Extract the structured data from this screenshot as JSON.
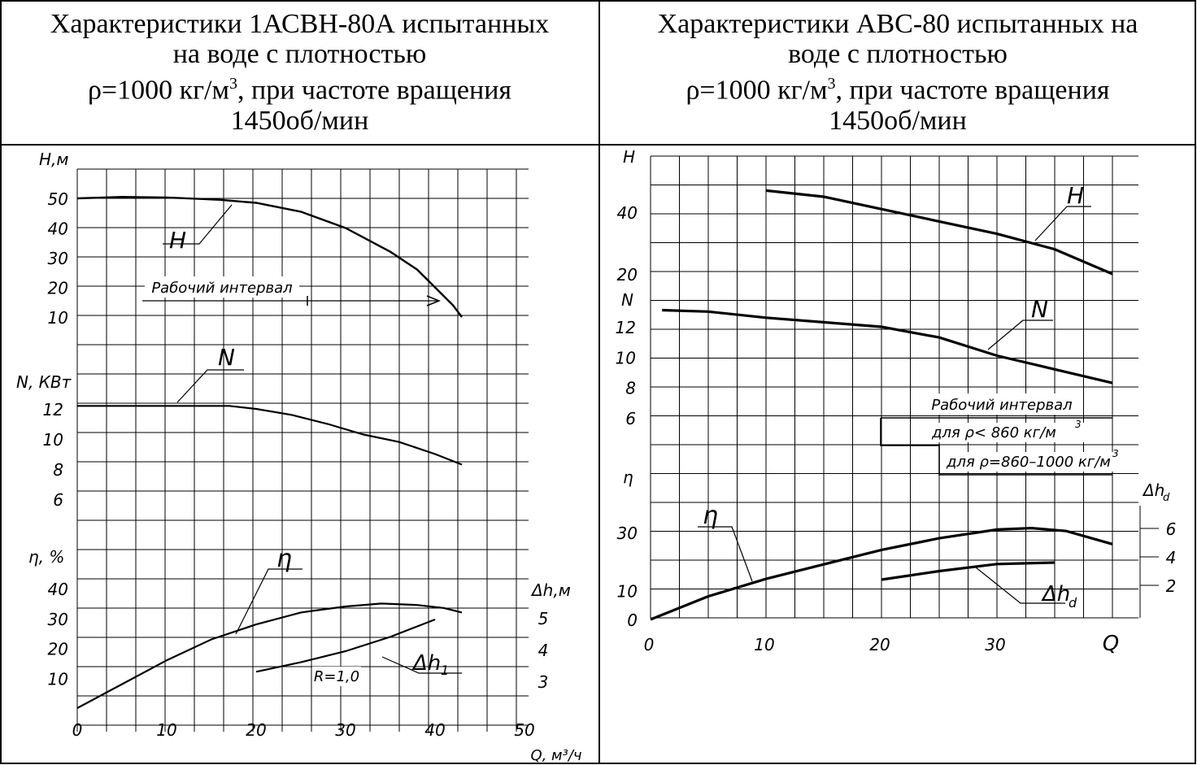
{
  "table": {
    "left_header": {
      "line1": "Характеристики 1АСВН-80А испытанных",
      "line2": "на воде с плотностью",
      "line3_pre": "ρ=1000 кг/м",
      "line3_sup": "3",
      "line3_post": ", при частоте вращения",
      "line4": "1450об/мин"
    },
    "right_header": {
      "line1": "Характеристики АВС-80 испытанных на",
      "line2": "воде с плотностью",
      "line3_pre": "ρ=1000 кг/м",
      "line3_sup": "3",
      "line3_post": ", при частоте вращения",
      "line4": "1450об/мин"
    }
  },
  "chart_data": [
    {
      "type": "line",
      "x_label": "Q, м³/ч",
      "x_ticks": [
        0,
        10,
        20,
        30,
        40,
        50
      ],
      "xlim": [
        0,
        52
      ],
      "grid": true,
      "panels": [
        {
          "axis_label": "Н,м",
          "ticks": [
            10,
            20,
            30,
            40,
            50
          ],
          "range": [
            0,
            55
          ]
        },
        {
          "axis_label": "N, КВт",
          "ticks": [
            6,
            8,
            10,
            12
          ],
          "range": [
            5,
            13.5
          ]
        },
        {
          "axis_label": "η, %",
          "ticks": [
            10,
            20,
            30,
            40
          ],
          "range": [
            0,
            50
          ]
        },
        {
          "axis_label": "Δh,м",
          "ticks": [
            3,
            4,
            5
          ],
          "range": [
            2,
            6
          ]
        }
      ],
      "series": [
        {
          "name": "H",
          "x": [
            0,
            5,
            10,
            16,
            20,
            25,
            30,
            35,
            38,
            40,
            42,
            43
          ],
          "y": [
            50,
            50.5,
            50.3,
            49.5,
            48.5,
            45.5,
            40,
            32,
            26,
            20,
            14,
            10
          ]
        },
        {
          "name": "N",
          "x": [
            0,
            5,
            10,
            15,
            17,
            20,
            24,
            28,
            32,
            36,
            40,
            43
          ],
          "y": [
            12.2,
            12.2,
            12.2,
            12.2,
            12.2,
            12.0,
            11.6,
            11.0,
            10.3,
            9.8,
            9.0,
            8.3
          ]
        },
        {
          "name": "η",
          "x": [
            0,
            5,
            10,
            15,
            20,
            25,
            30,
            34,
            38,
            41,
            43
          ],
          "y": [
            0,
            8,
            16,
            23,
            28,
            32,
            34,
            35,
            34.5,
            33.5,
            32
          ]
        },
        {
          "name": "Δh1",
          "x": [
            20,
            25,
            30,
            35,
            40
          ],
          "y": [
            3.3,
            3.6,
            3.95,
            4.4,
            4.95
          ]
        }
      ],
      "annotations": {
        "working_interval": "Рабочий интервал",
        "r_label": "R=1,0"
      }
    },
    {
      "type": "line",
      "x_label": "Q",
      "x_ticks": [
        0,
        10,
        20,
        30
      ],
      "xlim": [
        0,
        40
      ],
      "grid": true,
      "panels": [
        {
          "axis_label": "H",
          "ticks": [
            20,
            40
          ],
          "range": [
            10,
            50
          ]
        },
        {
          "axis_label": "N",
          "ticks": [
            6,
            8,
            10,
            12
          ],
          "range": [
            5,
            14
          ]
        },
        {
          "axis_label": "η",
          "ticks": [
            0,
            10,
            30
          ],
          "range": [
            0,
            40
          ]
        },
        {
          "axis_label": "Δhd",
          "ticks": [
            2,
            4,
            6
          ],
          "range": [
            0,
            8
          ]
        }
      ],
      "series": [
        {
          "name": "H",
          "x": [
            10,
            15,
            20,
            25,
            30,
            35,
            40
          ],
          "y": [
            47,
            45,
            41,
            37,
            33,
            28,
            20
          ]
        },
        {
          "name": "N",
          "x": [
            1,
            5,
            10,
            15,
            20,
            25,
            30,
            35,
            40
          ],
          "y": [
            13.1,
            13.0,
            12.6,
            12.3,
            12.0,
            11.3,
            10.1,
            9.2,
            8.3
          ]
        },
        {
          "name": "η",
          "x": [
            0,
            5,
            10,
            15,
            20,
            25,
            30,
            33,
            36,
            40
          ],
          "y": [
            0,
            8,
            14,
            19,
            24,
            28,
            31,
            31.5,
            30.5,
            26
          ]
        },
        {
          "name": "Δhd",
          "x": [
            20,
            25,
            30,
            35
          ],
          "y": [
            2.4,
            3.0,
            3.5,
            3.6
          ]
        }
      ],
      "annotations": {
        "working_interval": "Рабочий интервал",
        "range1_pre": "для ρ< 860 кг/м",
        "range1_sup": "3",
        "range2_pre": "для ρ=860–1000 кг/м",
        "range2_sup": "3"
      }
    }
  ]
}
